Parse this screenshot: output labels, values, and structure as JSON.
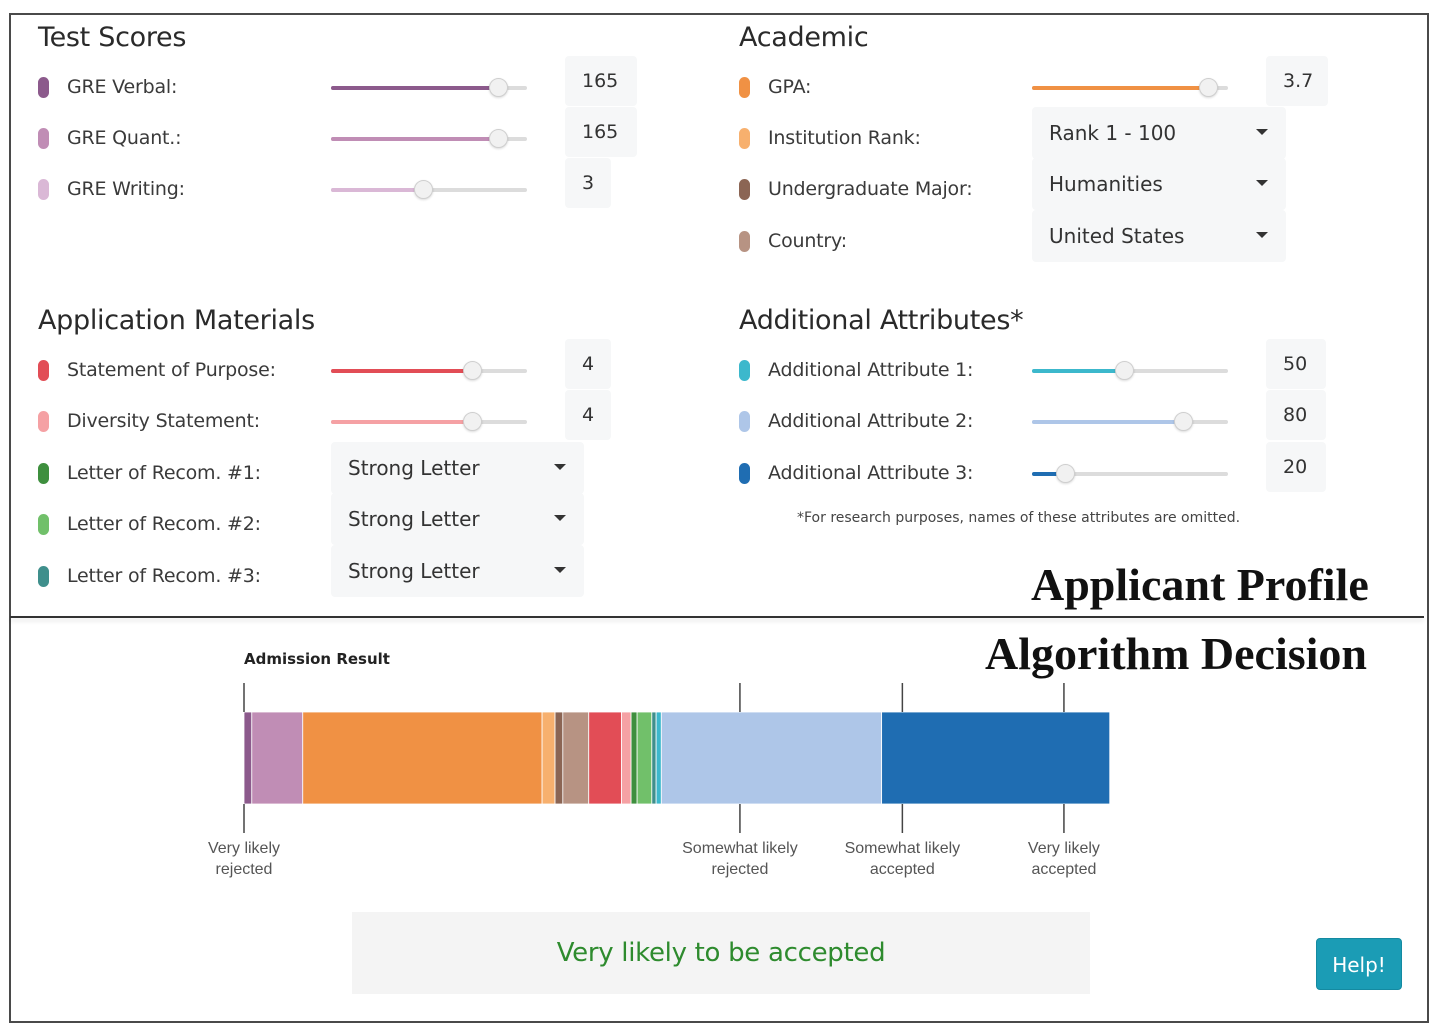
{
  "colors": {
    "gre_verbal": "#8c5a8c",
    "gre_quant": "#c08db5",
    "gre_writing": "#dab8d6",
    "gpa": "#f09144",
    "institution_rank": "#f7b06e",
    "undergraduate_major": "#8b6554",
    "country": "#b79383",
    "statement_of_purpose": "#e24d56",
    "diversity_statement": "#f5a1a4",
    "letter1": "#3e8f3e",
    "letter2": "#71c06a",
    "letter3": "#3f8f8c",
    "attr1": "#3cb8cc",
    "attr2": "#aec6e8",
    "attr3": "#1f6db2",
    "result_text": "#2e8b2e",
    "help_button": "#1b9cb5"
  },
  "test_scores": {
    "title": "Test Scores",
    "items": [
      {
        "label": "GRE Verbal:",
        "value": "165",
        "fraction": 0.85
      },
      {
        "label": "GRE Quant.:",
        "value": "165",
        "fraction": 0.85
      },
      {
        "label": "GRE Writing:",
        "value": "3",
        "fraction": 0.47
      }
    ]
  },
  "academic": {
    "title": "Academic",
    "gpa": {
      "label": "GPA:",
      "value": "3.7",
      "fraction": 0.9
    },
    "selects": [
      {
        "label": "Institution Rank:",
        "value": "Rank 1 - 100"
      },
      {
        "label": "Undergraduate Major:",
        "value": "Humanities"
      },
      {
        "label": "Country:",
        "value": "United States"
      }
    ]
  },
  "application_materials": {
    "title": "Application Materials",
    "sliders": [
      {
        "label": "Statement of Purpose:",
        "value": "4",
        "fraction": 0.72
      },
      {
        "label": "Diversity Statement:",
        "value": "4",
        "fraction": 0.72
      }
    ],
    "selects": [
      {
        "label": "Letter of Recom. #1:",
        "value": "Strong Letter"
      },
      {
        "label": "Letter of Recom. #2:",
        "value": "Strong Letter"
      },
      {
        "label": "Letter of Recom. #3:",
        "value": "Strong Letter"
      }
    ]
  },
  "additional_attributes": {
    "title": "Additional Attributes*",
    "items": [
      {
        "label": "Additional Attribute 1:",
        "value": "50",
        "fraction": 0.47
      },
      {
        "label": "Additional Attribute 2:",
        "value": "80",
        "fraction": 0.77
      },
      {
        "label": "Additional Attribute 3:",
        "value": "20",
        "fraction": 0.17
      }
    ],
    "footnote": "*For research purposes, names of these attributes are omitted."
  },
  "labels": {
    "applicant_profile": "Applicant Profile",
    "algorithm_decision": "Algorithm Decision"
  },
  "chart_data": {
    "type": "bar",
    "title": "Admission Result",
    "stacked_segments": [
      {
        "color": "#8c5a8c",
        "width": 0.009
      },
      {
        "color": "#c08db5",
        "width": 0.059
      },
      {
        "color": "#f09144",
        "width": 0.277
      },
      {
        "color": "#f7b06e",
        "width": 0.015
      },
      {
        "color": "#8b6554",
        "width": 0.009
      },
      {
        "color": "#b79383",
        "width": 0.03
      },
      {
        "color": "#e24d56",
        "width": 0.038
      },
      {
        "color": "#f5a1a4",
        "width": 0.011
      },
      {
        "color": "#3e8f3e",
        "width": 0.007
      },
      {
        "color": "#71c06a",
        "width": 0.017
      },
      {
        "color": "#3f8f8c",
        "width": 0.005
      },
      {
        "color": "#3cb8cc",
        "width": 0.006
      },
      {
        "color": "#aec6e8",
        "width": 0.255
      },
      {
        "color": "#1f6db2",
        "width": 0.264
      }
    ],
    "ticks": [
      {
        "label_line1": "Very likely",
        "label_line2": "rejected",
        "pos": 0.0
      },
      {
        "label_line1": "Somewhat likely",
        "label_line2": "rejected",
        "pos": 0.574
      },
      {
        "label_line1": "Somewhat likely",
        "label_line2": "accepted",
        "pos": 0.762
      },
      {
        "label_line1": "Very likely",
        "label_line2": "accepted",
        "pos": 0.949
      }
    ]
  },
  "result_text": "Very likely to be accepted",
  "help_label": "Help!"
}
